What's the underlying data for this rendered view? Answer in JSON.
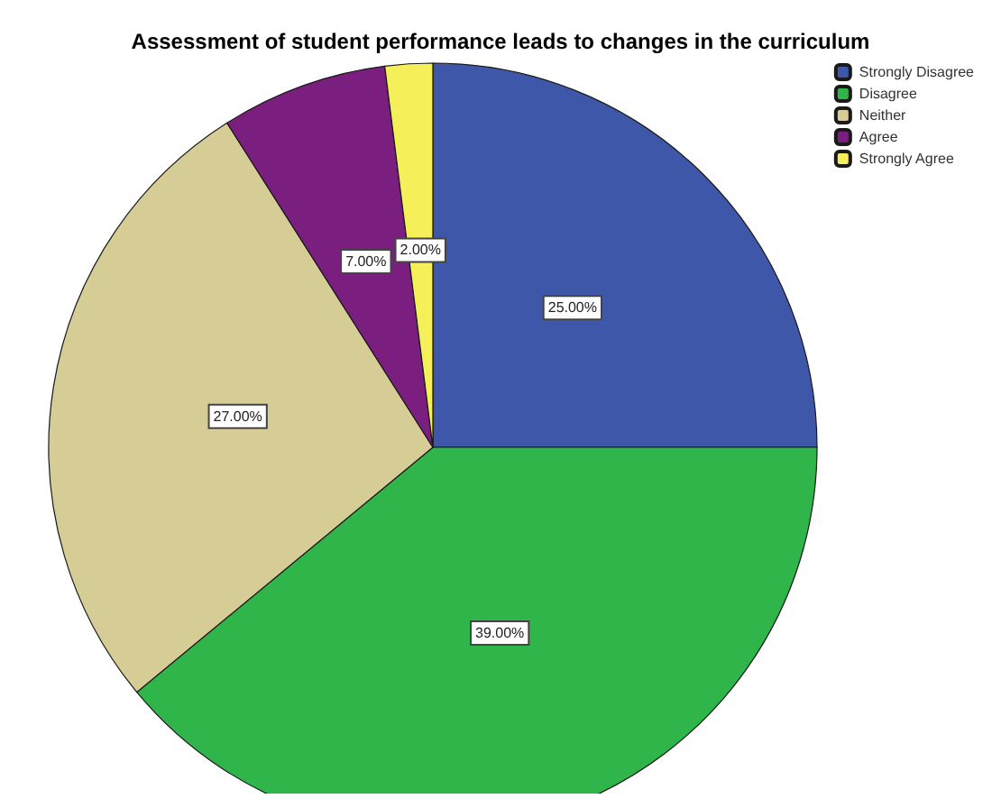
{
  "chart_data": {
    "type": "pie",
    "title": "Assessment of student performance leads to changes in the curriculum",
    "categories": [
      "Strongly Disagree",
      "Disagree",
      "Neither",
      "Agree",
      "Strongly Agree"
    ],
    "values": [
      25,
      39,
      27,
      7,
      2
    ],
    "colors": [
      "#3f57a8",
      "#2fb54a",
      "#d6cc96",
      "#7a1f7f",
      "#f5f05a"
    ],
    "value_labels": [
      "25.00%",
      "39.00%",
      "27.00%",
      "7.00%",
      "2.00%"
    ],
    "legend": "top right"
  }
}
